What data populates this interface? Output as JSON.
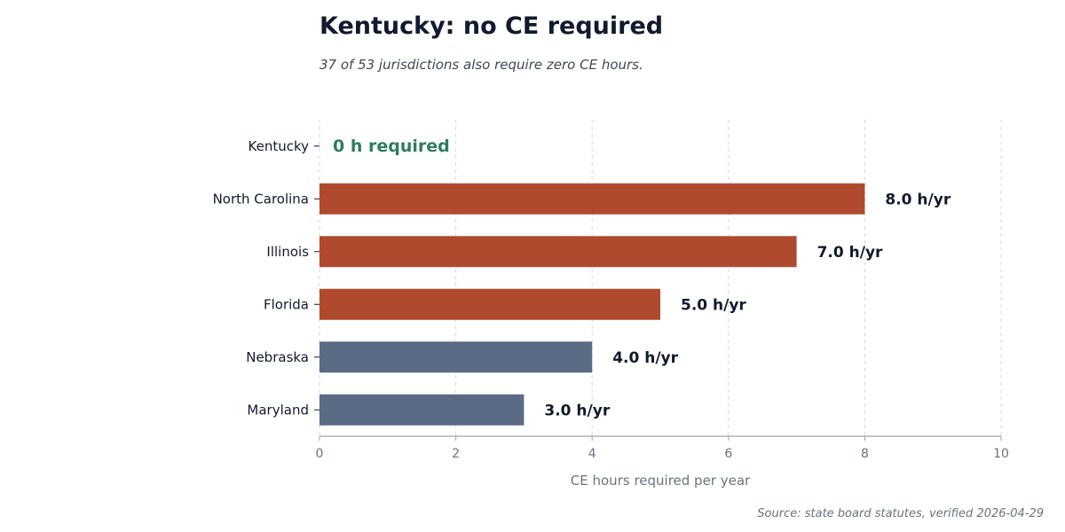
{
  "title": "Kentucky: no CE required",
  "subtitle": "37 of 53 jurisdictions also require zero CE hours.",
  "source": "Source: state board statutes, verified 2026-04-29",
  "chart_data": {
    "type": "bar",
    "orientation": "horizontal",
    "categories": [
      "Kentucky",
      "North Carolina",
      "Illinois",
      "Florida",
      "Nebraska",
      "Maryland"
    ],
    "values": [
      0,
      8,
      7,
      5,
      4,
      3
    ],
    "value_labels": [
      "0 h required",
      "8.0 h/yr",
      "7.0 h/yr",
      "5.0 h/yr",
      "4.0 h/yr",
      "3.0 h/yr"
    ],
    "bar_colors": [
      "#2e7d5b",
      "#b04a2f",
      "#b04a2f",
      "#b04a2f",
      "#5b6b85",
      "#5b6b85"
    ],
    "highlight_label_color": "#2e7d5b",
    "xlabel": "CE hours required per year",
    "ylabel": "",
    "xlim": [
      0,
      10
    ],
    "xticks": [
      0,
      2,
      4,
      6,
      8,
      10
    ],
    "grid": "vertical dashed"
  }
}
